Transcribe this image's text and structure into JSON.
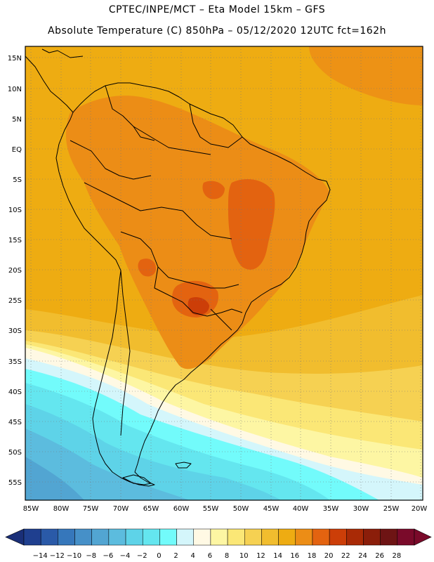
{
  "header": {
    "title_line1": "CPTEC/INPE/MCT –  Eta Model 15km – GFS",
    "title_line2": "Absolute Temperature (C) 850hPa – 05/12/2020 12UTC fct=162h"
  },
  "map": {
    "lat_labels": [
      "15N",
      "10N",
      "5N",
      "EQ",
      "5S",
      "10S",
      "15S",
      "20S",
      "25S",
      "30S",
      "35S",
      "40S",
      "45S",
      "50S",
      "55S"
    ],
    "lon_labels": [
      "85W",
      "80W",
      "75W",
      "70W",
      "65W",
      "60W",
      "55W",
      "50W",
      "45W",
      "40W",
      "35W",
      "30W",
      "25W",
      "20W"
    ],
    "grid": true,
    "gridline_style": "dotted"
  },
  "colorbar": {
    "labels": [
      "-14",
      "-12",
      "-10",
      "-8",
      "-6",
      "-4",
      "-2",
      "0",
      "2",
      "4",
      "6",
      "8",
      "10",
      "12",
      "14",
      "16",
      "18",
      "20",
      "22",
      "24",
      "26",
      "28"
    ],
    "colors": [
      "#1f3f8f",
      "#2a5aa8",
      "#3677bb",
      "#4690c8",
      "#52a5d2",
      "#5cbcde",
      "#5ed3e8",
      "#64e6ef",
      "#72fbfb",
      "#d4f6fb",
      "#fff9e4",
      "#fdf6a3",
      "#fbe776",
      "#f6d152",
      "#f1bd2e",
      "#eeac12",
      "#ec8d16",
      "#e36310",
      "#cc3e08",
      "#a92a06",
      "#8b1e0a",
      "#6e1414",
      "#7a0a2a"
    ],
    "left_extend_color": "#1a2f78",
    "right_extend_color": "#7a0a2a"
  }
}
